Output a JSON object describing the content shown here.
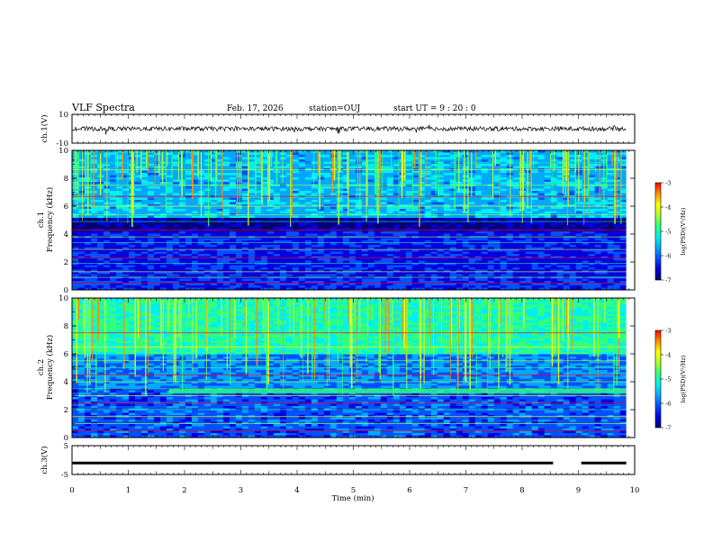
{
  "header": {
    "title": "VLF Spectra",
    "date": "Feb. 17, 2026",
    "station": "station=OUJ",
    "start": "start  UT =  9 : 20 : 0"
  },
  "colors": {
    "spectrum": [
      "#00007a",
      "#0000e0",
      "#0050ff",
      "#00a8ff",
      "#00f0f0",
      "#30ff80",
      "#b0ff30",
      "#ffff00",
      "#ff9000",
      "#ff0000",
      "#ffffff"
    ],
    "trace": "#000000"
  },
  "chart_data": [
    {
      "type": "line",
      "name": "ch.1 waveform",
      "ylabel": "ch.1(V)",
      "ylim": [
        -10,
        10
      ],
      "yticks": [
        "10",
        "-10"
      ],
      "description_values": {
        "baseline": 0,
        "noise_amplitude": 2
      }
    },
    {
      "type": "heatmap",
      "name": "ch.1 spectrogram",
      "ylabel_line1": "ch.1",
      "ylabel_line2": "Frequency (kHz)",
      "ylim": [
        0,
        10
      ],
      "yticks": [
        "0",
        "2",
        "4",
        "6",
        "8",
        "10"
      ],
      "colorbar": {
        "label": "log(PSD)(V²/Hz)",
        "range": [
          -7,
          -3
        ],
        "ticks": [
          "-3",
          "-4",
          "-5",
          "-6",
          "-7"
        ]
      },
      "horizontal_lines_khz": [
        0.5,
        0.9,
        1.3,
        1.9,
        2.3,
        2.9,
        3.4,
        3.8,
        4.3,
        4.9,
        5.4,
        6.0,
        6.7,
        7.5,
        8.6,
        9.1
      ]
    },
    {
      "type": "heatmap",
      "name": "ch.2 spectrogram",
      "ylabel_line1": "ch.2",
      "ylabel_line2": "Frequency (kHz)",
      "ylim": [
        0,
        10
      ],
      "yticks": [
        "0",
        "2",
        "4",
        "6",
        "8",
        "10"
      ],
      "colorbar": {
        "label": "log(PSD)(V²/Hz)",
        "range": [
          -7,
          -3
        ],
        "ticks": [
          "-3",
          "-4",
          "-5",
          "-6",
          "-7"
        ]
      },
      "emission_band_khz": 3.3,
      "emission_start_min": 1.72,
      "horizontal_lines_khz": [
        0.5,
        1.0,
        1.5,
        2.0,
        2.5,
        3.0,
        3.5,
        4.0,
        4.5,
        5.0,
        5.5,
        6.5,
        7.5
      ]
    },
    {
      "type": "line",
      "name": "ch.3",
      "ylabel": "ch.3(V)",
      "ylim": [
        -5,
        5
      ],
      "yticks": [
        "5",
        "-5"
      ],
      "level": -1,
      "gap_min": [
        8.55,
        9.05
      ]
    }
  ],
  "xaxis": {
    "label": "Time  (min)",
    "range": [
      0,
      10
    ],
    "ticks": [
      "0",
      "1",
      "2",
      "3",
      "4",
      "5",
      "6",
      "7",
      "8",
      "9",
      "10"
    ],
    "data_end_min": 9.85
  }
}
